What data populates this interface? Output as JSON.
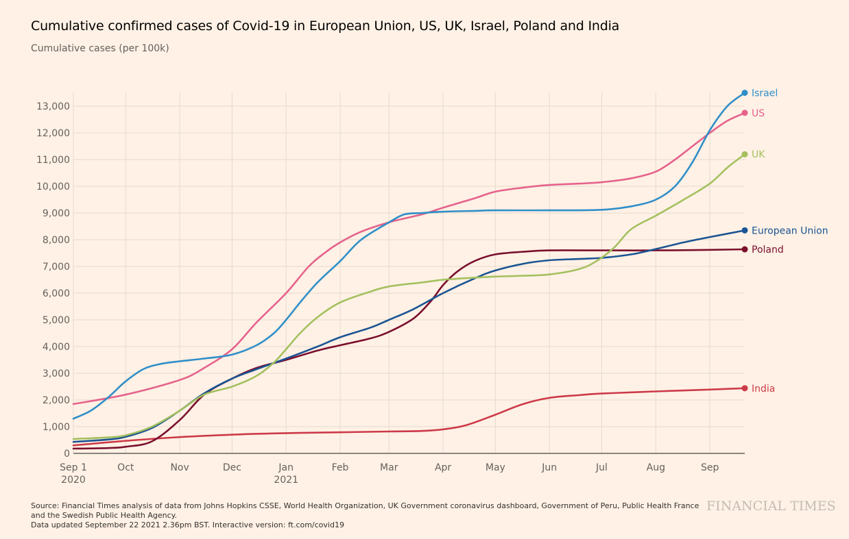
{
  "header": {
    "title": "Cumulative confirmed cases of Covid-19 in European Union, US, UK, Israel, Poland and India",
    "subtitle": "Cumulative cases (per 100k)"
  },
  "footer": {
    "source": "Source: Financial Times analysis of data from Johns Hopkins CSSE, World Health Organization, UK Government coronavirus dashboard, Government of Peru, Public Health France and the Swedish Public Health Agency.",
    "updated": "Data updated September 22 2021 2.36pm BST. Interactive version: ft.com/covid19",
    "logo": "FINANCIAL TIMES"
  },
  "chart_data": {
    "type": "line",
    "title": "Cumulative confirmed cases of Covid-19 in European Union, US, UK, Israel, Poland and India",
    "ylabel": "Cumulative cases (per 100k)",
    "xlabel": "",
    "x_unit": "days since Sep 1 2020",
    "xlim": [
      0,
      385
    ],
    "ylim": [
      0,
      13500
    ],
    "grid": true,
    "legend": "direct labels at line ends (right)",
    "y_ticks": [
      {
        "value": 0,
        "label": "0"
      },
      {
        "value": 1000,
        "label": "1,000"
      },
      {
        "value": 2000,
        "label": "2,000"
      },
      {
        "value": 3000,
        "label": "3,000"
      },
      {
        "value": 4000,
        "label": "4,000"
      },
      {
        "value": 5000,
        "label": "5,000"
      },
      {
        "value": 6000,
        "label": "6,000"
      },
      {
        "value": 7000,
        "label": "7,000"
      },
      {
        "value": 8000,
        "label": "8,000"
      },
      {
        "value": 9000,
        "label": "9,000"
      },
      {
        "value": 10000,
        "label": "10,000"
      },
      {
        "value": 11000,
        "label": "11,000"
      },
      {
        "value": 12000,
        "label": "12,000"
      },
      {
        "value": 13000,
        "label": "13,000"
      }
    ],
    "x_ticks": [
      {
        "day": 0,
        "label": "Sep 1",
        "sublabel": "2020"
      },
      {
        "day": 30,
        "label": "Oct",
        "sublabel": ""
      },
      {
        "day": 61,
        "label": "Nov",
        "sublabel": ""
      },
      {
        "day": 91,
        "label": "Dec",
        "sublabel": ""
      },
      {
        "day": 122,
        "label": "Jan",
        "sublabel": "2021"
      },
      {
        "day": 153,
        "label": "Feb",
        "sublabel": ""
      },
      {
        "day": 181,
        "label": "Mar",
        "sublabel": ""
      },
      {
        "day": 212,
        "label": "Apr",
        "sublabel": ""
      },
      {
        "day": 242,
        "label": "May",
        "sublabel": ""
      },
      {
        "day": 273,
        "label": "Jun",
        "sublabel": ""
      },
      {
        "day": 303,
        "label": "Jul",
        "sublabel": ""
      },
      {
        "day": 334,
        "label": "Aug",
        "sublabel": ""
      },
      {
        "day": 365,
        "label": "Sep",
        "sublabel": ""
      }
    ],
    "series": [
      {
        "name": "India",
        "color": "#cc3a48",
        "x": [
          0,
          30,
          61,
          91,
          122,
          153,
          181,
          200,
          212,
          225,
          242,
          258,
          273,
          290,
          303,
          334,
          365,
          385
        ],
        "y": [
          300,
          470,
          610,
          700,
          760,
          790,
          820,
          840,
          900,
          1050,
          1450,
          1850,
          2080,
          2180,
          2240,
          2320,
          2390,
          2440
        ]
      },
      {
        "name": "Poland",
        "color": "#7a0f2e",
        "x": [
          0,
          20,
          30,
          45,
          61,
          75,
          91,
          105,
          122,
          140,
          153,
          170,
          181,
          195,
          205,
          212,
          220,
          230,
          242,
          258,
          273,
          303,
          334,
          365,
          385
        ],
        "y": [
          180,
          200,
          250,
          450,
          1250,
          2200,
          2800,
          3200,
          3500,
          3850,
          4050,
          4300,
          4550,
          5050,
          5700,
          6300,
          6800,
          7200,
          7450,
          7550,
          7600,
          7600,
          7600,
          7620,
          7640
        ]
      },
      {
        "name": "European Union",
        "color": "#1a5493",
        "x": [
          0,
          20,
          30,
          45,
          61,
          75,
          91,
          105,
          122,
          140,
          153,
          170,
          181,
          195,
          212,
          230,
          242,
          258,
          273,
          290,
          303,
          320,
          334,
          350,
          365,
          385
        ],
        "y": [
          430,
          520,
          620,
          950,
          1600,
          2250,
          2800,
          3150,
          3550,
          4000,
          4350,
          4700,
          5000,
          5400,
          6000,
          6550,
          6850,
          7100,
          7230,
          7280,
          7320,
          7450,
          7650,
          7900,
          8100,
          8350
        ]
      },
      {
        "name": "UK",
        "color": "#a4c05f",
        "x": [
          0,
          20,
          30,
          45,
          61,
          75,
          91,
          105,
          115,
          122,
          130,
          140,
          153,
          170,
          181,
          200,
          212,
          230,
          242,
          258,
          273,
          290,
          300,
          310,
          320,
          334,
          350,
          365,
          375,
          385
        ],
        "y": [
          540,
          600,
          680,
          1000,
          1600,
          2200,
          2500,
          2900,
          3400,
          3900,
          4500,
          5100,
          5650,
          6050,
          6250,
          6400,
          6500,
          6580,
          6620,
          6650,
          6700,
          6900,
          7200,
          7700,
          8400,
          8900,
          9500,
          10100,
          10700,
          11200
        ]
      },
      {
        "name": "US",
        "color": "#e5628c",
        "x": [
          0,
          30,
          61,
          75,
          91,
          105,
          122,
          135,
          145,
          153,
          165,
          181,
          200,
          212,
          230,
          242,
          258,
          273,
          290,
          303,
          320,
          334,
          345,
          355,
          365,
          375,
          385
        ],
        "y": [
          1850,
          2200,
          2750,
          3200,
          3900,
          4900,
          6000,
          7000,
          7550,
          7900,
          8300,
          8650,
          8950,
          9200,
          9550,
          9800,
          9950,
          10050,
          10100,
          10150,
          10300,
          10550,
          11000,
          11500,
          12000,
          12450,
          12750
        ]
      },
      {
        "name": "Israel",
        "color": "#2f8ec8",
        "x": [
          0,
          10,
          20,
          30,
          40,
          50,
          61,
          75,
          91,
          105,
          115,
          122,
          130,
          140,
          153,
          165,
          181,
          190,
          200,
          212,
          230,
          242,
          273,
          303,
          320,
          334,
          345,
          355,
          365,
          375,
          385
        ],
        "y": [
          1300,
          1600,
          2100,
          2700,
          3150,
          3350,
          3450,
          3550,
          3700,
          4050,
          4500,
          5000,
          5650,
          6400,
          7200,
          8000,
          8650,
          8950,
          9000,
          9050,
          9080,
          9100,
          9100,
          9120,
          9250,
          9500,
          10000,
          10900,
          12100,
          13000,
          13500
        ]
      }
    ]
  }
}
